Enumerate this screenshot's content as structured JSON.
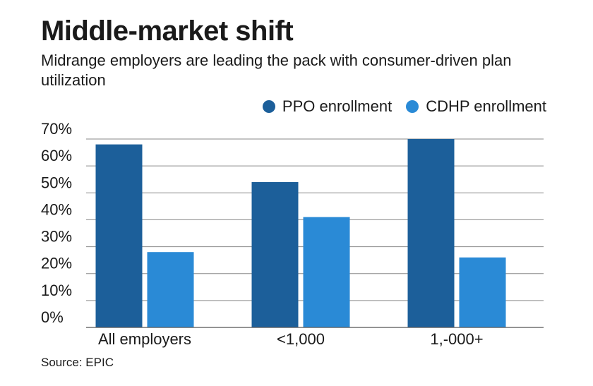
{
  "title": "Middle-market shift",
  "subtitle": "Midrange employers are leading the pack with consumer-driven plan utilization",
  "source": "Source: EPIC",
  "colors": {
    "ppo": "#1c5f9a",
    "cdhp": "#2a8ad6",
    "grid": "#8a8a8a"
  },
  "chart_data": {
    "type": "bar",
    "categories": [
      "All employers",
      "<1,000",
      "1,-000+"
    ],
    "series": [
      {
        "name": "PPO enrollment",
        "values": [
          68,
          54,
          70
        ]
      },
      {
        "name": "CDHP enrollment",
        "values": [
          28,
          41,
          26
        ]
      }
    ],
    "yticks": [
      "0%",
      "10%",
      "20%",
      "30%",
      "40%",
      "50%",
      "60%",
      "70%"
    ],
    "ylim": [
      0,
      70
    ],
    "legend_position": "top-right",
    "grid": true
  }
}
